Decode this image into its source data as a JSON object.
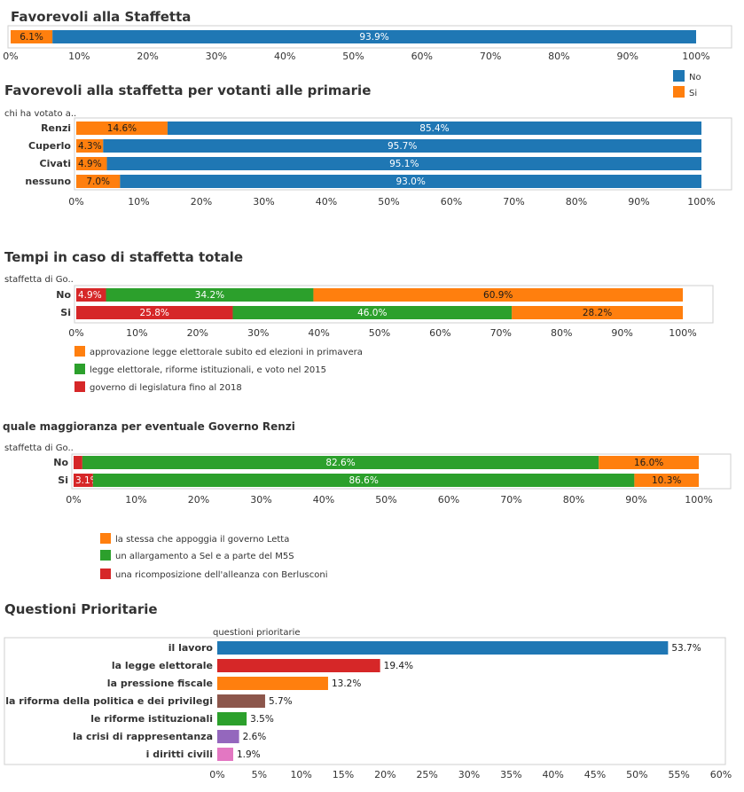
{
  "colors": {
    "no": "#1f77b4",
    "si": "#ff7f0e",
    "green": "#2ca02c",
    "red": "#d62728",
    "brown": "#8c564b",
    "purple": "#9467bd",
    "pink": "#e377c2"
  },
  "chart_data": [
    {
      "id": "c1",
      "type": "bar",
      "orientation": "horizontal",
      "stacked": true,
      "title": "Favorevoli alla Staffetta",
      "categories": [
        ""
      ],
      "series": [
        {
          "name": "Si",
          "color_key": "si",
          "values": [
            6.1
          ]
        },
        {
          "name": "No",
          "color_key": "no",
          "values": [
            93.9
          ]
        }
      ],
      "xticks": [
        "0%",
        "10%",
        "20%",
        "30%",
        "40%",
        "50%",
        "60%",
        "70%",
        "80%",
        "90%",
        "100%"
      ],
      "xlim": [
        0,
        100
      ],
      "legend": [
        {
          "name": "No",
          "color_key": "no"
        },
        {
          "name": "Si",
          "color_key": "si"
        }
      ]
    },
    {
      "id": "c2",
      "type": "bar",
      "orientation": "horizontal",
      "stacked": true,
      "title": "Favorevoli alla staffetta per votanti alle primarie",
      "row_header": "chi ha votato a..",
      "categories": [
        "Renzi",
        "Cuperlo",
        "Civati",
        "nessuno"
      ],
      "series": [
        {
          "name": "Si",
          "color_key": "si",
          "values": [
            14.6,
            4.3,
            4.9,
            7.0
          ]
        },
        {
          "name": "No",
          "color_key": "no",
          "values": [
            85.4,
            95.7,
            95.1,
            93.0
          ]
        }
      ],
      "xticks": [
        "0%",
        "10%",
        "20%",
        "30%",
        "40%",
        "50%",
        "60%",
        "70%",
        "80%",
        "90%",
        "100%"
      ],
      "xlim": [
        0,
        100
      ]
    },
    {
      "id": "c3",
      "type": "bar",
      "orientation": "horizontal",
      "stacked": true,
      "title": "Tempi in caso di staffetta totale",
      "row_header": "staffetta di Go..",
      "categories": [
        "No",
        "Si"
      ],
      "series": [
        {
          "name": "governo di legislatura fino al 2018",
          "color_key": "red",
          "values": [
            4.9,
            25.8
          ]
        },
        {
          "name": "legge elettorale, riforme istituzionali, e voto nel 2015",
          "color_key": "green",
          "values": [
            34.2,
            46.0
          ]
        },
        {
          "name": "approvazione legge elettorale subito ed elezioni in primavera",
          "color_key": "si",
          "values": [
            60.9,
            28.2
          ]
        }
      ],
      "xticks": [
        "0%",
        "10%",
        "20%",
        "30%",
        "40%",
        "50%",
        "60%",
        "70%",
        "80%",
        "90%",
        "100%"
      ],
      "xlim": [
        0,
        100
      ],
      "legend": [
        {
          "name": "approvazione legge elettorale subito ed elezioni in primavera",
          "color_key": "si"
        },
        {
          "name": "legge elettorale, riforme istituzionali, e voto nel 2015",
          "color_key": "green"
        },
        {
          "name": "governo di legislatura fino al 2018",
          "color_key": "red"
        }
      ]
    },
    {
      "id": "c4",
      "type": "bar",
      "orientation": "horizontal",
      "stacked": true,
      "title": "quale maggioranza per eventuale Governo Renzi",
      "row_header": "staffetta di Go..",
      "categories": [
        "No",
        "Si"
      ],
      "series": [
        {
          "name": "una ricomposizione dell'alleanza con Berlusconi",
          "color_key": "red",
          "values": [
            1.4,
            3.1
          ]
        },
        {
          "name": "un allargamento a Sel e a parte del M5S",
          "color_key": "green",
          "values": [
            82.6,
            86.6
          ]
        },
        {
          "name": "la stessa che appoggia il governo Letta",
          "color_key": "si",
          "values": [
            16.0,
            10.3
          ]
        }
      ],
      "xticks": [
        "0%",
        "10%",
        "20%",
        "30%",
        "40%",
        "50%",
        "60%",
        "70%",
        "80%",
        "90%",
        "100%"
      ],
      "xlim": [
        0,
        100
      ],
      "legend": [
        {
          "name": "la stessa che appoggia il governo Letta",
          "color_key": "si"
        },
        {
          "name": "un allargamento a Sel e a parte del M5S",
          "color_key": "green"
        },
        {
          "name": "una ricomposizione dell'alleanza con Berlusconi",
          "color_key": "red"
        }
      ]
    },
    {
      "id": "c5",
      "type": "bar",
      "orientation": "horizontal",
      "title": "Questioni Prioritarie",
      "row_header": "questioni prioritarie",
      "categories": [
        "il lavoro",
        "la legge elettorale",
        "la pressione fiscale",
        "la riforma della politica e dei privilegi",
        "le riforme istituzionali",
        "la crisi di rappresentanza",
        "i diritti civili"
      ],
      "values": [
        53.7,
        19.4,
        13.2,
        5.7,
        3.5,
        2.6,
        1.9
      ],
      "color_keys": [
        "no",
        "red",
        "si",
        "brown",
        "green",
        "purple",
        "pink"
      ],
      "xticks": [
        "0%",
        "5%",
        "10%",
        "15%",
        "20%",
        "25%",
        "30%",
        "35%",
        "40%",
        "45%",
        "50%",
        "55%",
        "60%"
      ],
      "xlim": [
        0,
        60
      ]
    }
  ]
}
